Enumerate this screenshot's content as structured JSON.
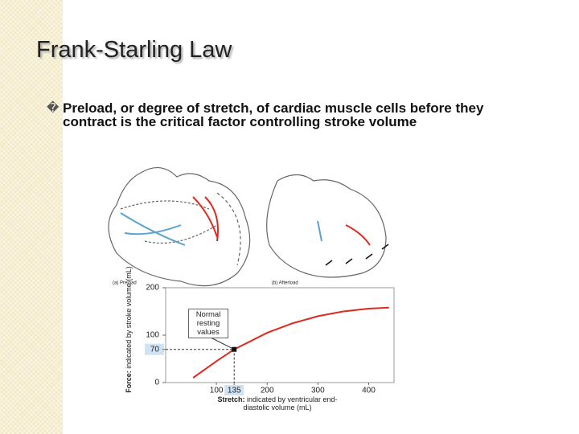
{
  "slide": {
    "title": "Frank-Starling Law",
    "bullet_marker": "�",
    "bullet": "Preload, or degree of stretch, of cardiac muscle cells before they contract is the critical factor controlling stroke volume",
    "panels": [
      "(a) Preload",
      "(b) Afterload"
    ]
  },
  "chart_data": {
    "type": "line",
    "y_label_bold": "Force:",
    "y_label": "indicated by stroke volume (mL)",
    "x_label_bold": "Stretch:",
    "x_label": "indicated by ventricular end-diastolic volume (mL)",
    "annotation": "Normal resting values",
    "x": [
      54,
      100,
      135,
      200,
      250,
      300,
      350,
      400,
      440
    ],
    "series": [
      {
        "color": "#e0281e",
        "values": [
          10,
          45,
          70,
          105,
          125,
          140,
          150,
          156,
          158
        ]
      }
    ],
    "marker": {
      "x": 135,
      "y": 70
    },
    "xlim": [
      0,
      450
    ],
    "ylim": [
      0,
      200
    ],
    "xticks": [
      100,
      135,
      200,
      300,
      400
    ],
    "yticks": [
      0,
      70,
      100,
      200
    ]
  }
}
